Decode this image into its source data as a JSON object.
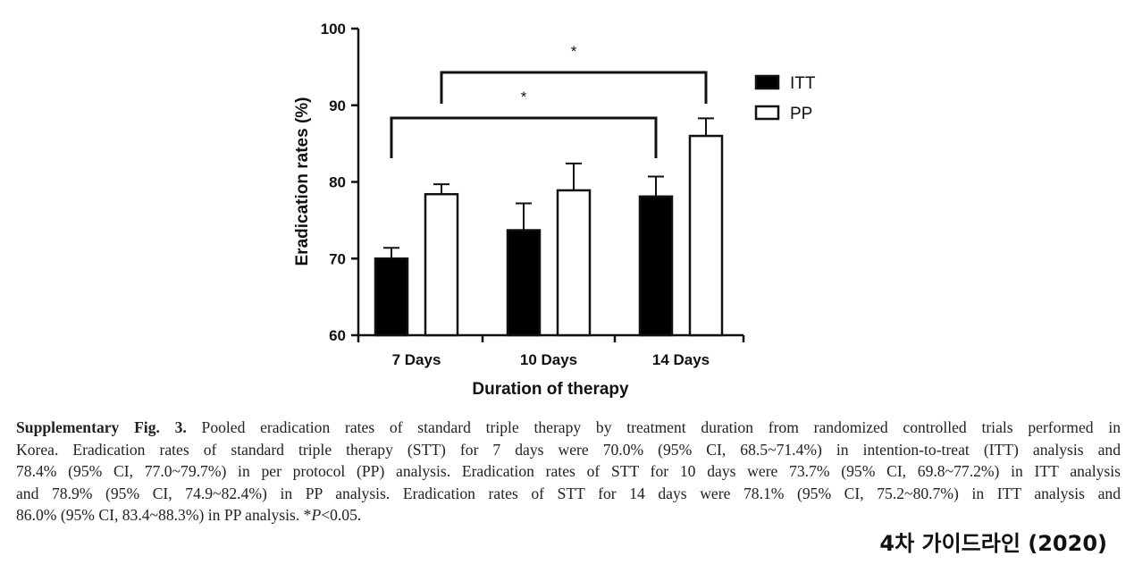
{
  "chart_data": {
    "type": "bar",
    "ylabel": "Eradication rates (%)",
    "xlabel": "Duration of therapy",
    "ylim": [
      60,
      100
    ],
    "yticks": [
      60,
      70,
      80,
      90,
      100
    ],
    "categories": [
      "7 Days",
      "10 Days",
      "14 Days"
    ],
    "series": [
      {
        "name": "ITT",
        "color": "#000000",
        "values": [
          70.0,
          73.7,
          78.1
        ],
        "ci_upper": [
          71.4,
          77.2,
          80.7
        ]
      },
      {
        "name": "PP",
        "color": "#ffffff",
        "values": [
          78.4,
          78.9,
          86.0
        ],
        "ci_upper": [
          79.7,
          82.4,
          88.3
        ]
      }
    ],
    "legend_position": "top-right",
    "significance": [
      {
        "from": "ITT 7 Days",
        "to": "ITT 14 Days",
        "label": "*"
      },
      {
        "from": "PP 7 Days",
        "to": "PP 14 Days",
        "label": "*"
      }
    ]
  },
  "caption": {
    "fig_label": "Supplementary Fig. 3.",
    "line1": "Pooled eradication rates of standard triple therapy by treatment duration from randomized controlled trials performed in",
    "line2": "Korea. Eradication rates of standard triple therapy (STT)  for 7 days were 70.0% (95% CI, 68.5~71.4%) in intention-to-treat (ITT) analysis and",
    "line3": "78.4% (95% CI, 77.0~79.7%) in per protocol (PP) analysis. Eradication rates of STT for 10 days were 73.7% (95% CI, 69.8~77.2%) in ITT analysis",
    "line4": "and 78.9% (95% CI, 74.9~82.4%) in PP analysis. Eradication rates of STT for 14 days were 78.1% (95% CI, 75.2~80.7%) in ITT analysis and",
    "line5_pre": "86.0% (95% CI, 83.4~88.3%) in PP analysis. *",
    "line5_italic": "P",
    "line5_post": "<0.05."
  },
  "footer": {
    "label": "4차 가이드라인 (2020)"
  }
}
